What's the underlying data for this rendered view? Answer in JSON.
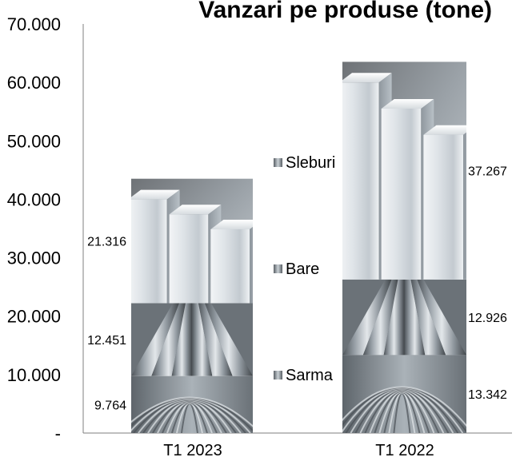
{
  "chart_data": {
    "type": "bar",
    "stacked": true,
    "title": "Vanzari pe produse (tone)",
    "categories": [
      "T1 2023",
      "T1 2022"
    ],
    "series": [
      {
        "name": "Sarma",
        "values": [
          9764,
          13342
        ],
        "texture": "wire-coil"
      },
      {
        "name": "Bare",
        "values": [
          12451,
          12926
        ],
        "texture": "round-bars"
      },
      {
        "name": "Sleburi",
        "values": [
          21316,
          37267
        ],
        "texture": "aluminium-slabs"
      }
    ],
    "value_labels": [
      [
        "9.764",
        "13.342"
      ],
      [
        "12.451",
        "12.926"
      ],
      [
        "21.316",
        "37.267"
      ]
    ],
    "ylim": [
      0,
      70000
    ],
    "y_ticks": [
      0,
      10000,
      20000,
      30000,
      40000,
      50000,
      60000,
      70000
    ],
    "y_tick_labels": [
      "-",
      "10.000",
      "20.000",
      "30.000",
      "40.000",
      "50.000",
      "60.000",
      "70.000"
    ],
    "legend": {
      "placement": "center-between-bars",
      "order": [
        "Sleburi",
        "Bare",
        "Sarma"
      ]
    },
    "grid": false
  }
}
